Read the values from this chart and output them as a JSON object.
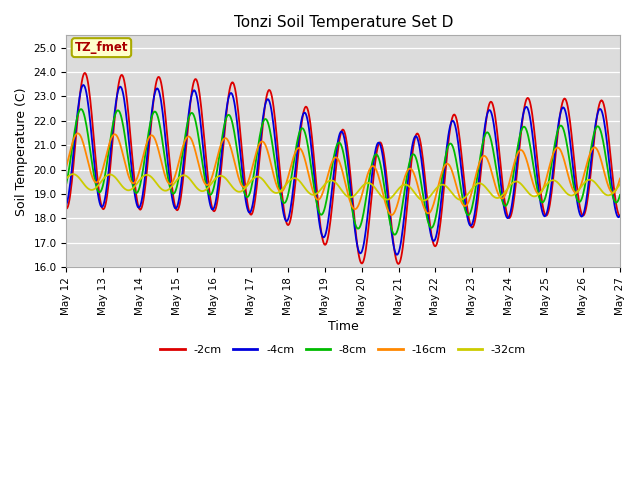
{
  "title": "Tonzi Soil Temperature Set D",
  "xlabel": "Time",
  "ylabel": "Soil Temperature (C)",
  "annotation": "TZ_fmet",
  "ylim": [
    16.0,
    25.5
  ],
  "series": {
    "-2cm": {
      "color": "#dd0000",
      "lw": 1.3
    },
    "-4cm": {
      "color": "#0000dd",
      "lw": 1.3
    },
    "-8cm": {
      "color": "#00bb00",
      "lw": 1.3
    },
    "-16cm": {
      "color": "#ff8800",
      "lw": 1.3
    },
    "-32cm": {
      "color": "#cccc00",
      "lw": 1.3
    }
  },
  "tick_labels": [
    "May 12",
    "May 13",
    "May 14",
    "May 15",
    "May 16",
    "May 17",
    "May 18",
    "May 19",
    "May 20",
    "May 21",
    "May 22",
    "May 23",
    "May 24",
    "May 25",
    "May 26",
    "May 27"
  ],
  "fig_bg": "#ffffff",
  "plot_bg": "#dcdcdc",
  "title_fontsize": 11,
  "axis_label_fontsize": 9,
  "tick_fontsize": 7.5,
  "legend_fontsize": 8
}
